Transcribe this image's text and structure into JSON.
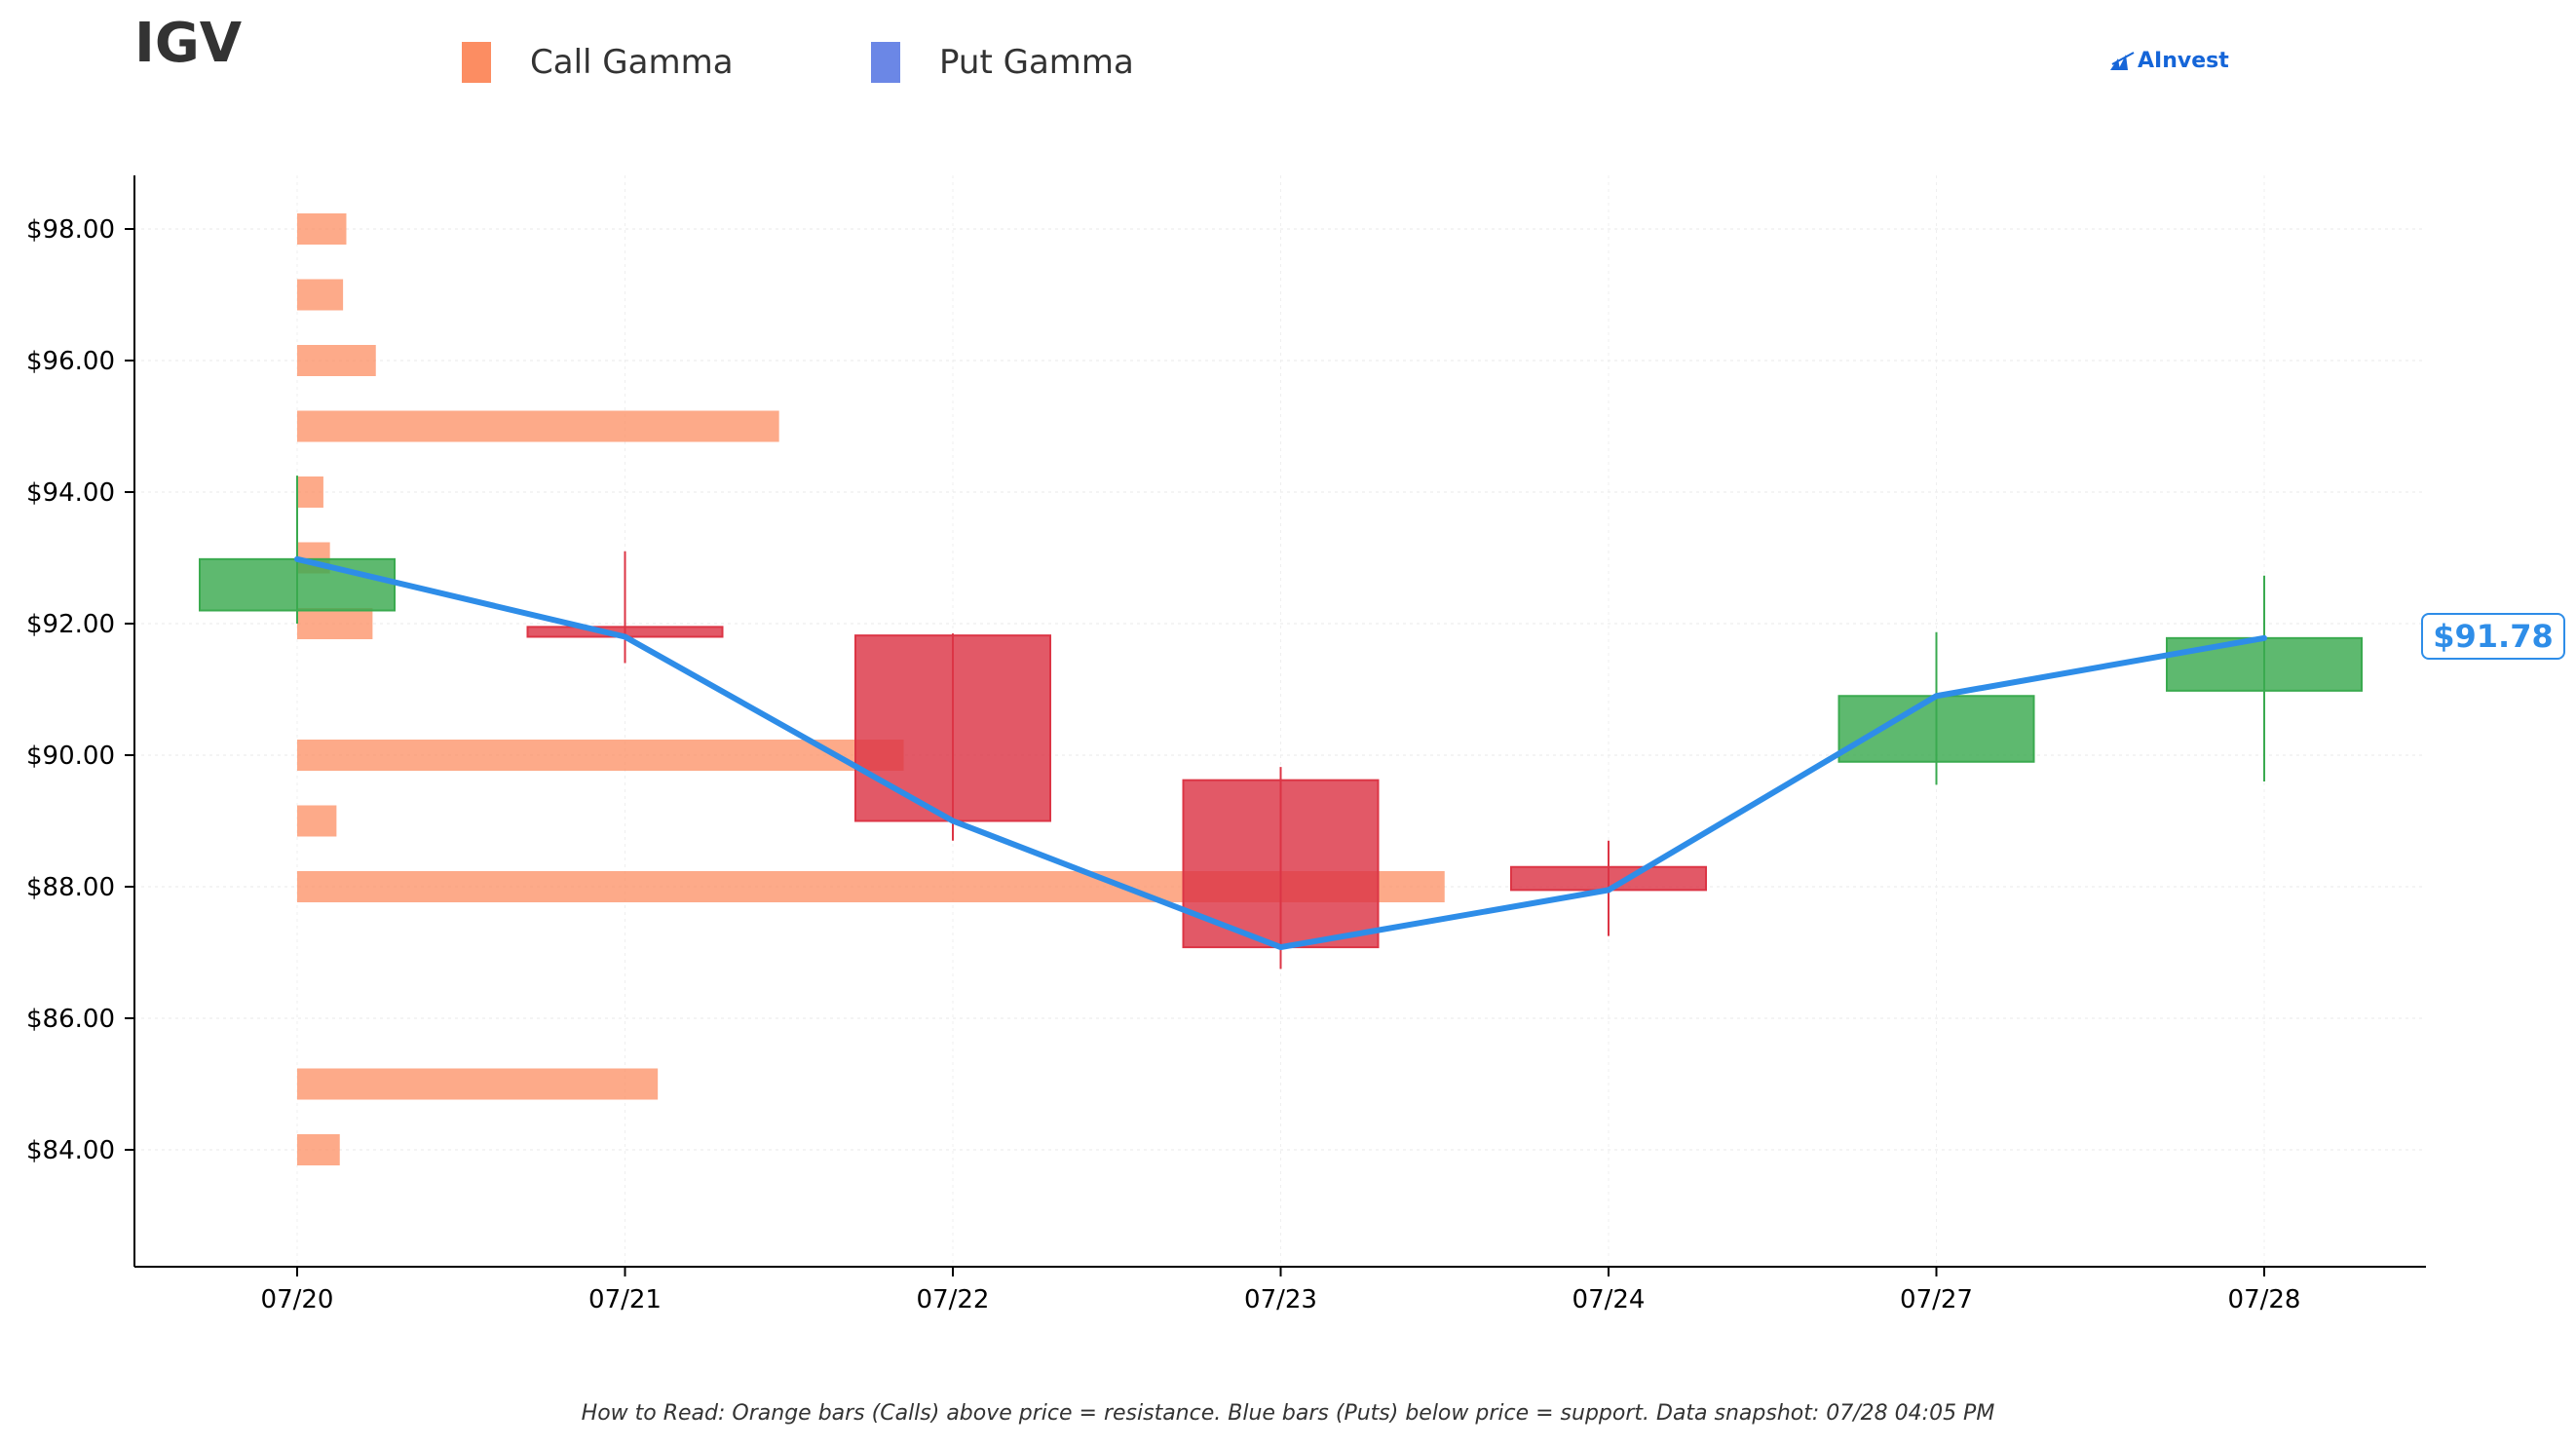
{
  "header": {
    "ticker": "IGV",
    "legend": [
      {
        "label": "Call Gamma",
        "color": "#fc8d62"
      },
      {
        "label": "Put Gamma",
        "color": "#6b87e6"
      }
    ],
    "logo_text": "AInvest"
  },
  "footnote": "How to Read: Orange bars (Calls) above price = resistance. Blue bars (Puts) below price = support. Data snapshot: 07/28 04:05 PM",
  "price_tag": "$91.78",
  "chart_data": {
    "type": "candlestick",
    "title": "IGV",
    "categories": [
      "07/20",
      "07/21",
      "07/22",
      "07/23",
      "07/24",
      "07/27",
      "07/28"
    ],
    "ylim": [
      82.2,
      98.8
    ],
    "yticks": [
      84,
      86,
      88,
      90,
      92,
      94,
      96,
      98
    ],
    "ytick_labels": [
      "$84.00",
      "$86.00",
      "$88.00",
      "$90.00",
      "$92.00",
      "$94.00",
      "$96.00",
      "$98.00"
    ],
    "grid": true,
    "colors": {
      "up": "#3aaa4f",
      "down": "#dc3545",
      "line": "#2e8de8",
      "call": "#fc8d62"
    },
    "candles": [
      {
        "date": "07/20",
        "open": 92.2,
        "high": 94.25,
        "low": 92.0,
        "close": 92.98
      },
      {
        "date": "07/21",
        "open": 91.95,
        "high": 93.1,
        "low": 91.4,
        "close": 91.8
      },
      {
        "date": "07/22",
        "open": 91.82,
        "high": 91.85,
        "low": 88.7,
        "close": 89.0
      },
      {
        "date": "07/23",
        "open": 89.62,
        "high": 89.82,
        "low": 86.75,
        "close": 87.08
      },
      {
        "date": "07/24",
        "open": 88.3,
        "high": 88.7,
        "low": 87.25,
        "close": 87.95
      },
      {
        "date": "07/27",
        "open": 89.9,
        "high": 91.87,
        "low": 89.55,
        "close": 90.9
      },
      {
        "date": "07/28",
        "open": 90.98,
        "high": 92.73,
        "low": 89.6,
        "close": 91.78
      }
    ],
    "close_line": [
      92.98,
      91.8,
      89.0,
      87.08,
      87.95,
      90.9,
      91.78
    ],
    "last_price": 91.78,
    "call_gamma": [
      {
        "strike": 98,
        "length": 0.15
      },
      {
        "strike": 97,
        "length": 0.14
      },
      {
        "strike": 96,
        "length": 0.24
      },
      {
        "strike": 95,
        "length": 1.47
      },
      {
        "strike": 94,
        "length": 0.08
      },
      {
        "strike": 93,
        "length": 0.1
      },
      {
        "strike": 92,
        "length": 0.23
      },
      {
        "strike": 90,
        "length": 1.85
      },
      {
        "strike": 89,
        "length": 0.12
      },
      {
        "strike": 88,
        "length": 3.5
      },
      {
        "strike": 85,
        "length": 1.1
      },
      {
        "strike": 84,
        "length": 0.13
      }
    ],
    "put_gamma": []
  }
}
